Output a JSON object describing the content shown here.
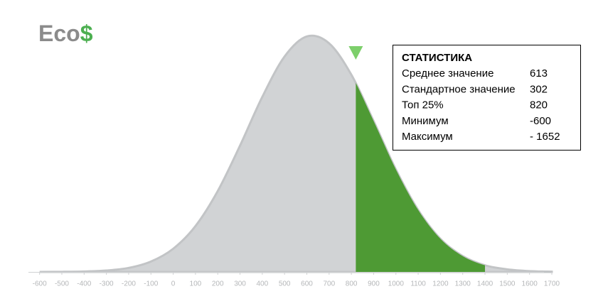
{
  "logo": {
    "text": "Eco",
    "accent": "$"
  },
  "chart_data": {
    "type": "area",
    "x": [
      -600,
      -500,
      -400,
      -300,
      -200,
      -100,
      0,
      100,
      200,
      300,
      400,
      500,
      600,
      700,
      800,
      900,
      1000,
      1100,
      1200,
      1300,
      1400,
      1500,
      1600,
      1700
    ],
    "values": [
      0,
      0.05,
      0.2,
      0.6,
      1.7,
      4.4,
      9.8,
      19.4,
      34.2,
      53.4,
      74,
      91.1,
      99.6,
      96.7,
      83.4,
      63.8,
      43.3,
      26.2,
      14,
      6.7,
      2.8,
      1.1,
      0.35,
      0.1
    ],
    "color": "#d1d3d5",
    "highlight": [
      820,
      1400
    ],
    "highlight_color": "#4e9a34",
    "marker_color": "#7dcf6b",
    "xlim": [
      -650,
      1700
    ],
    "xticks": [
      -600,
      -500,
      -400,
      -300,
      -200,
      -100,
      0,
      100,
      200,
      300,
      400,
      500,
      600,
      700,
      800,
      900,
      1000,
      1100,
      1200,
      1300,
      1400,
      1500,
      1600,
      1700
    ],
    "ylim": [
      0,
      100
    ]
  },
  "stats": {
    "title": "СТАТИСТИКА",
    "rows": [
      {
        "label": "Среднее значение",
        "value": "613"
      },
      {
        "label": "Стандартное значение",
        "value": "302"
      },
      {
        "label": "Топ 25%",
        "value": "820"
      },
      {
        "label": "Минимум",
        "value": "-600"
      },
      {
        "label": "Максимум",
        "value": "- 1652"
      }
    ]
  }
}
